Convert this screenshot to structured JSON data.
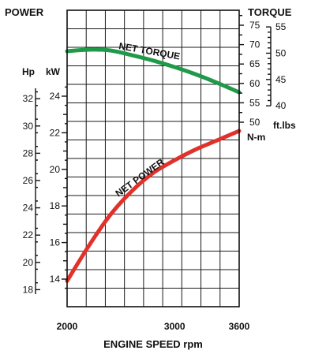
{
  "chart_data": {
    "type": "line",
    "title": "",
    "power_label": "POWER",
    "torque_label": "TORQUE",
    "xlabel": "ENGINE SPEED rpm",
    "x_ticks": [
      "2000",
      "3000",
      "3600"
    ],
    "xlim": [
      2000,
      3600
    ],
    "grid": true,
    "axes": {
      "hp": {
        "unit": "Hp",
        "ticks": [
          18,
          20,
          22,
          24,
          26,
          28,
          30,
          32
        ]
      },
      "kw": {
        "unit": "kW",
        "ticks": [
          14,
          16,
          18,
          20,
          22,
          24
        ],
        "ylim": [
          13.3,
          24.6
        ]
      },
      "nm": {
        "unit": "N-m",
        "ticks": [
          50,
          55,
          60,
          65,
          70,
          75
        ]
      },
      "ftlbs": {
        "unit": "ft.lbs",
        "ticks": [
          40,
          45,
          50,
          55
        ]
      }
    },
    "series": [
      {
        "name": "NET TORQUE",
        "axis": "nm",
        "color": "#1e9a48",
        "x": [
          2000,
          2200,
          2400,
          2600,
          2800,
          3000,
          3200,
          3400,
          3600
        ],
        "y": [
          68.3,
          68.7,
          68.5,
          67.3,
          65.9,
          64.2,
          62.3,
          60.1,
          57.7
        ]
      },
      {
        "name": "NET POWER",
        "axis": "kw",
        "color": "#e0322b",
        "x": [
          2000,
          2200,
          2400,
          2600,
          2800,
          3000,
          3200,
          3400,
          3600
        ],
        "y": [
          13.9,
          15.8,
          17.5,
          18.8,
          19.8,
          20.5,
          21.1,
          21.6,
          22.1
        ]
      }
    ]
  }
}
